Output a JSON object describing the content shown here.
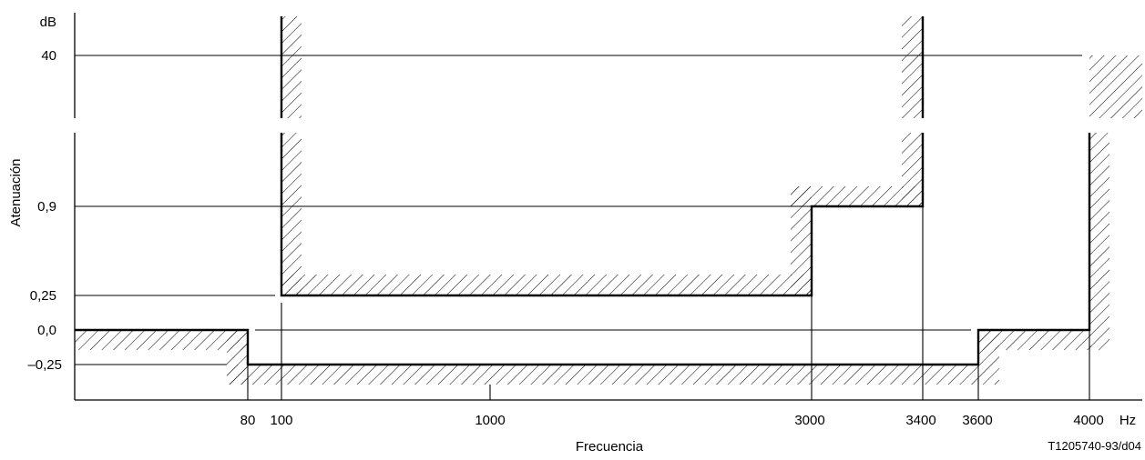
{
  "chart_data": {
    "type": "attenuation-mask",
    "unit_y": "dB",
    "unit_x": "Hz",
    "ylabel": "Atenuación",
    "xlabel": "Frecuencia",
    "figure_id": "T1205740-93/d04",
    "x_ticks": [
      "80",
      "100",
      "1000",
      "3000",
      "3400",
      "3600",
      "4000"
    ],
    "y_ticks": [
      "40",
      "0,9",
      "0,25",
      "0,0",
      "–0,25"
    ],
    "upper_limit": [
      {
        "f_from": 100,
        "f_to": 3000,
        "db": 0.25
      },
      {
        "f_from": 3000,
        "f_to": 3400,
        "db": 0.9
      },
      {
        "f_from": 4000,
        "f_to": null,
        "db": 40
      }
    ],
    "lower_limit": [
      {
        "f_from": null,
        "f_to": 80,
        "db": 0.0
      },
      {
        "f_from": 80,
        "f_to": 3600,
        "db": -0.25
      },
      {
        "f_from": 3600,
        "f_to": 4000,
        "db": 0.0
      }
    ]
  }
}
